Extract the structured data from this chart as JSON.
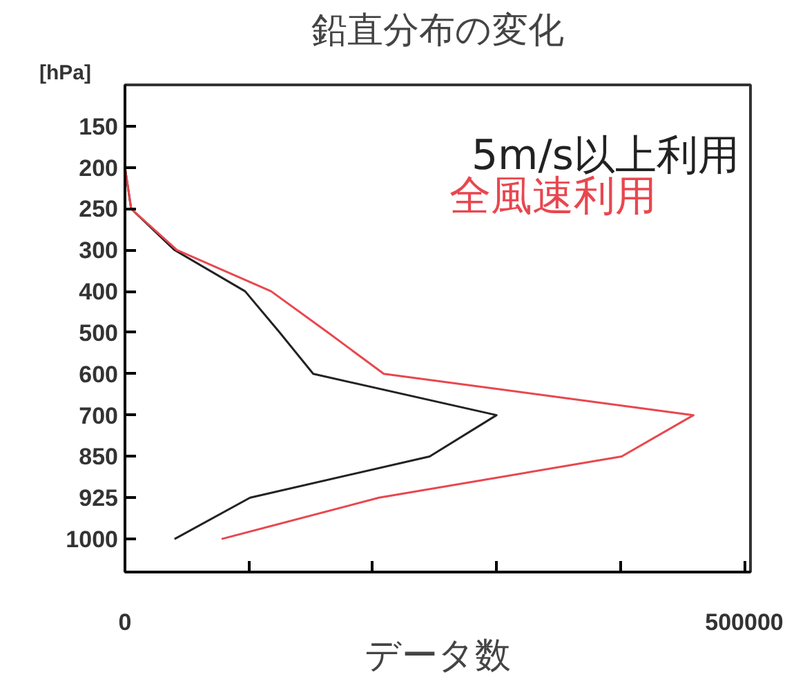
{
  "chart_data": {
    "type": "line",
    "orientation": "horizontal",
    "title": "鉛直分布の変化",
    "xlabel": "データ数",
    "ylabel": "[hPa]",
    "categories": [
      "150",
      "200",
      "250",
      "300",
      "400",
      "500",
      "600",
      "700",
      "850",
      "925",
      "1000"
    ],
    "series": [
      {
        "name": "5m/s以上利用",
        "color": "#222222",
        "values": [
          0,
          0,
          5000,
          40000,
          97000,
          125000,
          152000,
          300000,
          246000,
          101000,
          40000
        ]
      },
      {
        "name": "全風速利用",
        "color": "#e8474f",
        "values": [
          0,
          0,
          5000,
          42000,
          118000,
          164000,
          209000,
          459000,
          401000,
          205000,
          78000
        ]
      }
    ],
    "xlim": [
      0,
      505000
    ],
    "xticks": [
      0,
      {
        "value": 100000,
        "label": null
      },
      {
        "value": 200000,
        "label": null
      },
      {
        "value": 300000,
        "label": null
      },
      {
        "value": 400000,
        "label": null
      },
      500000
    ],
    "grid": false,
    "legend": false,
    "marker": "none",
    "line_style": "solid"
  }
}
